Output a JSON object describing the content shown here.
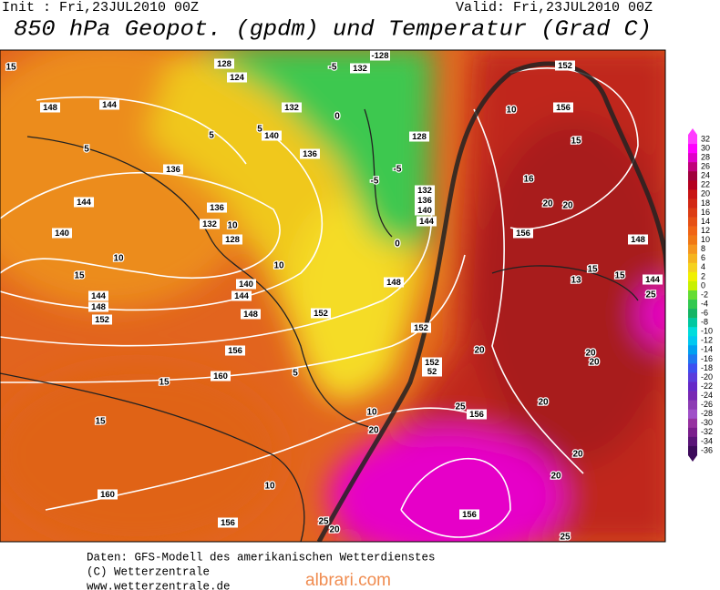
{
  "header": {
    "init": "Init : Fri,23JUL2010 00Z",
    "valid": "Valid: Fri,23JUL2010 00Z",
    "title": "850 hPa Geopot. (gpdm) und Temperatur (Grad C)"
  },
  "map": {
    "geopotential_labels": [
      "144",
      "148",
      "136",
      "144",
      "140",
      "132",
      "128",
      "136",
      "140",
      "144",
      "148",
      "144",
      "148",
      "152",
      "152",
      "156",
      "160",
      "160",
      "156",
      "156",
      "156",
      "152",
      "152",
      "52",
      "156",
      "156",
      "152",
      "148",
      "140",
      "136",
      "132",
      "128",
      "144",
      "-128",
      "132",
      "128",
      "124",
      "132",
      "140",
      "136",
      "148",
      "144"
    ],
    "temperature_labels": [
      "15",
      "5",
      "10",
      "10",
      "15",
      "10",
      "5",
      "15",
      "15",
      "10",
      "10",
      "20",
      "25",
      "25",
      "20",
      "20",
      "20",
      "20",
      "20",
      "25",
      "20",
      "20",
      "13",
      "15",
      "15",
      "25",
      "20",
      "20",
      "16",
      "15",
      "10",
      "-5",
      "-5",
      "0",
      "-5",
      "0",
      "5",
      "5"
    ]
  },
  "colorbar": {
    "levels": [
      32,
      30,
      28,
      26,
      24,
      22,
      20,
      18,
      16,
      14,
      12,
      10,
      8,
      6,
      4,
      2,
      0,
      -2,
      -4,
      -6,
      -8,
      -10,
      -12,
      -14,
      -16,
      -18,
      -20,
      -22,
      -24,
      -26,
      -28,
      -30,
      -32,
      -34,
      -36
    ],
    "colors": [
      "#ff3cff",
      "#ff00ff",
      "#e000c8",
      "#c0007a",
      "#a0003c",
      "#b4001e",
      "#c81414",
      "#d22814",
      "#dc3c14",
      "#e65014",
      "#f06414",
      "#f07814",
      "#f5961e",
      "#f5b41e",
      "#f5d21e",
      "#f0f000",
      "#c8f000",
      "#64dc32",
      "#32c850",
      "#14b464",
      "#00c8a0",
      "#00dcdc",
      "#00c8f0",
      "#00a0f0",
      "#1e78f0",
      "#3c50f0",
      "#5a3cdc",
      "#6428c8",
      "#7828b4",
      "#8c3cb4",
      "#a050c8",
      "#9632a0",
      "#7a1e8c",
      "#5a1478",
      "#3c0a5a"
    ]
  },
  "footer": {
    "line1": "Daten: GFS-Modell des amerikanischen Wetterdienstes",
    "line2": "(C) Wetterzentrale",
    "line3": "www.wetterzentrale.de",
    "watermark": "albrari.com"
  }
}
